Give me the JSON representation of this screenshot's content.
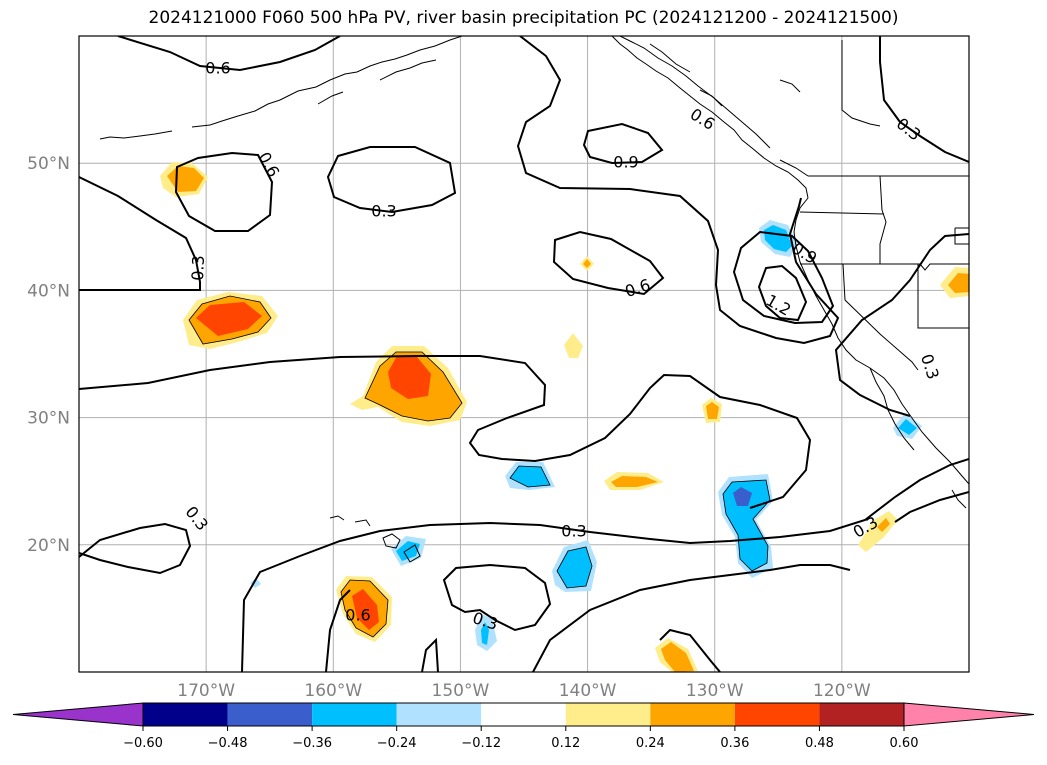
{
  "title": "2024121000 F060 500 hPa PV, river basin precipitation PC (2024121200 - 2024121500)",
  "map": {
    "lat_range": [
      10,
      60
    ],
    "lon_range": [
      -180,
      -110
    ],
    "lat_ticks": [
      {
        "value": 50,
        "label": "50°N"
      },
      {
        "value": 40,
        "label": "40°N"
      },
      {
        "value": 30,
        "label": "30°N"
      },
      {
        "value": 20,
        "label": "20°N"
      }
    ],
    "lon_ticks": [
      {
        "value": -170,
        "label": "170°W"
      },
      {
        "value": -160,
        "label": "160°W"
      },
      {
        "value": -150,
        "label": "150°W"
      },
      {
        "value": -140,
        "label": "140°W"
      },
      {
        "value": -130,
        "label": "130°W"
      },
      {
        "value": -120,
        "label": "120°W"
      }
    ],
    "gridlines": true,
    "contour_labels": [
      "0.6",
      "0.6",
      "0.3",
      "0.3",
      "0.9",
      "0.6",
      "0.9",
      "1.2",
      "0.6",
      "0.3",
      "0.3",
      "0.3",
      "0.3",
      "0.3",
      "0.6",
      "0.3"
    ]
  },
  "colorbar": {
    "colors": [
      "#9933cc",
      "#00008b",
      "#3a5fcd",
      "#00bfff",
      "#b0e2ff",
      "#ffffff",
      "#ffec8b",
      "#ffa500",
      "#ff4500",
      "#b22222",
      "#ff82ab"
    ],
    "tick_labels": [
      "−0.60",
      "−0.48",
      "−0.36",
      "−0.24",
      "−0.12",
      "0.12",
      "0.24",
      "0.36",
      "0.48",
      "0.60"
    ]
  }
}
